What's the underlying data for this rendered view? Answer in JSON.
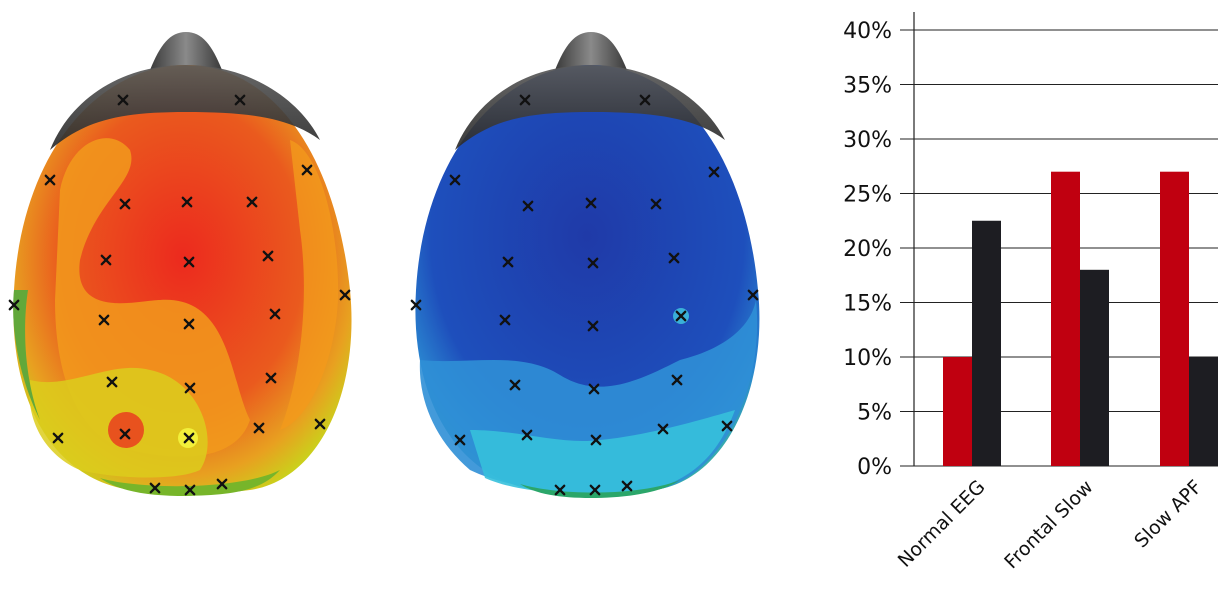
{
  "chart_data": {
    "type": "bar",
    "categories": [
      "Normal EEG",
      "Frontal Slow",
      "Slow APF"
    ],
    "series": [
      {
        "values": [
          10,
          27,
          27
        ],
        "color": "#c00010"
      },
      {
        "values": [
          22.5,
          18,
          10
        ],
        "color": "#1d1d22"
      }
    ],
    "y_ticks": [
      "0%",
      "5%",
      "10%",
      "15%",
      "20%",
      "25%",
      "30%",
      "35%",
      "40%"
    ],
    "ylim": [
      0,
      40
    ],
    "grid": true,
    "title": "",
    "xlabel": "",
    "ylabel": ""
  },
  "head_maps": [
    {
      "name": "warm-topography",
      "palette": [
        "#d8d817",
        "#f29a1c",
        "#e51f1f"
      ]
    },
    {
      "name": "cool-topography",
      "palette": [
        "#2bb7e0",
        "#1f5bc4",
        "#1b2f9a"
      ]
    }
  ]
}
